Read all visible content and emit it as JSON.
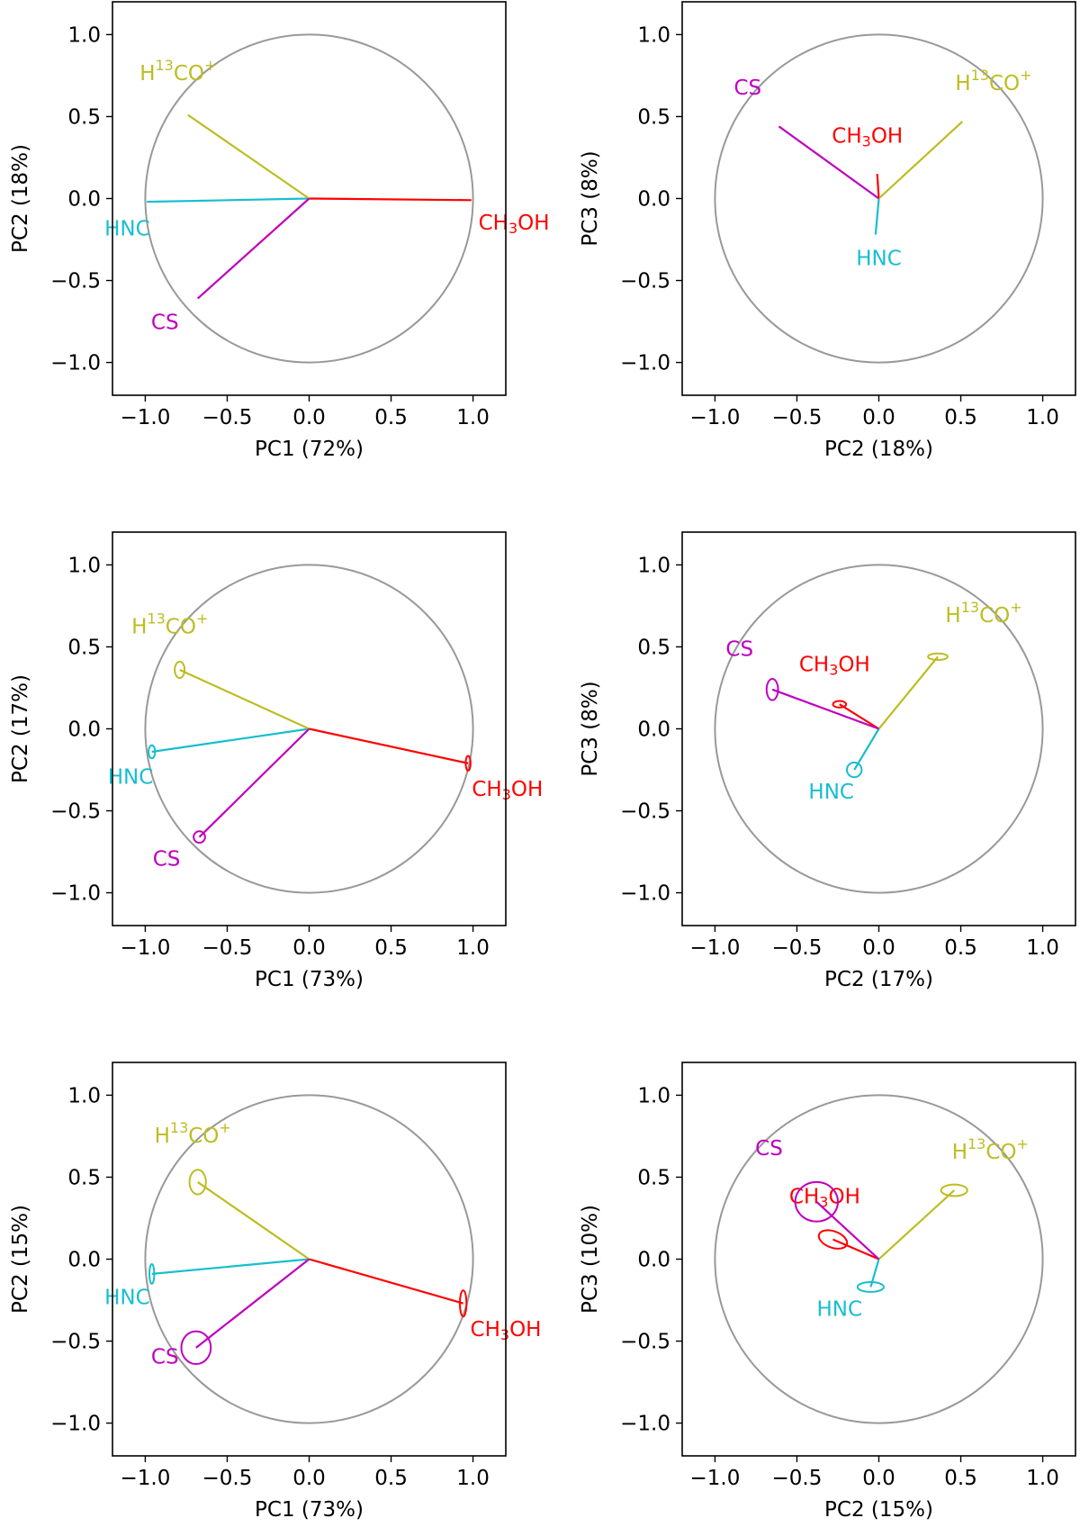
{
  "colors": {
    "CH3OH": "#ff0000",
    "HNC": "#17becf",
    "H13CO+": "#bcbd22",
    "CS": "#bf00bf",
    "circle": "#999999"
  },
  "chart_data": [
    {
      "type": "scatter",
      "xlabel": "PC1 (72%)",
      "ylabel": "PC2 (18%)",
      "xlim": [
        -1.2,
        1.2
      ],
      "ylim": [
        -1.2,
        1.2
      ],
      "xticks": [
        "−1.0",
        "−0.5",
        "0.0",
        "0.5",
        "1.0"
      ],
      "yticks": [
        "1.0",
        "0.5",
        "0.0",
        "−0.5",
        "−1.0"
      ],
      "unit_circle": true,
      "vectors": [
        {
          "name": "CH3OH",
          "x": 0.99,
          "y": -0.01,
          "label_x": 1.25,
          "label_y": -0.15,
          "ell": null
        },
        {
          "name": "HNC",
          "x": -0.99,
          "y": -0.02,
          "label_x": -1.11,
          "label_y": -0.19,
          "ell": null
        },
        {
          "name": "H13CO+",
          "x": -0.74,
          "y": 0.51,
          "label_x": -0.8,
          "label_y": 0.76,
          "ell": null
        },
        {
          "name": "CS",
          "x": -0.68,
          "y": -0.61,
          "label_x": -0.88,
          "label_y": -0.76,
          "ell": null
        }
      ]
    },
    {
      "type": "scatter",
      "xlabel": "PC2 (18%)",
      "ylabel": "PC3 (8%)",
      "xlim": [
        -1.2,
        1.2
      ],
      "ylim": [
        -1.2,
        1.2
      ],
      "xticks": [
        "−1.0",
        "−0.5",
        "0.0",
        "0.5",
        "1.0"
      ],
      "yticks": [
        "1.0",
        "0.5",
        "0.0",
        "−0.5",
        "−1.0"
      ],
      "unit_circle": true,
      "vectors": [
        {
          "name": "CH3OH",
          "x": -0.01,
          "y": 0.15,
          "label_x": -0.07,
          "label_y": 0.38,
          "ell": null
        },
        {
          "name": "HNC",
          "x": -0.02,
          "y": -0.22,
          "label_x": 0.0,
          "label_y": -0.37,
          "ell": null
        },
        {
          "name": "H13CO+",
          "x": 0.51,
          "y": 0.47,
          "label_x": 0.7,
          "label_y": 0.7,
          "ell": null
        },
        {
          "name": "CS",
          "x": -0.61,
          "y": 0.44,
          "label_x": -0.8,
          "label_y": 0.67,
          "ell": null
        }
      ]
    },
    {
      "type": "scatter",
      "xlabel": "PC1 (73%)",
      "ylabel": "PC2 (17%)",
      "xlim": [
        -1.2,
        1.2
      ],
      "ylim": [
        -1.2,
        1.2
      ],
      "xticks": [
        "−1.0",
        "−0.5",
        "0.0",
        "0.5",
        "1.0"
      ],
      "yticks": [
        "1.0",
        "0.5",
        "0.0",
        "−0.5",
        "−1.0"
      ],
      "unit_circle": true,
      "vectors": [
        {
          "name": "CH3OH",
          "x": 0.97,
          "y": -0.21,
          "label_x": 1.21,
          "label_y": -0.37,
          "ell": [
            0.015,
            0.045,
            0
          ]
        },
        {
          "name": "HNC",
          "x": -0.96,
          "y": -0.14,
          "label_x": -1.09,
          "label_y": -0.3,
          "ell": [
            0.02,
            0.04,
            0
          ]
        },
        {
          "name": "H13CO+",
          "x": -0.79,
          "y": 0.36,
          "label_x": -0.85,
          "label_y": 0.62,
          "ell": [
            0.03,
            0.05,
            0
          ]
        },
        {
          "name": "CS",
          "x": -0.67,
          "y": -0.66,
          "label_x": -0.87,
          "label_y": -0.8,
          "ell": [
            0.035,
            0.035,
            0
          ]
        }
      ]
    },
    {
      "type": "scatter",
      "xlabel": "PC2 (17%)",
      "ylabel": "PC3 (8%)",
      "xlim": [
        -1.2,
        1.2
      ],
      "ylim": [
        -1.2,
        1.2
      ],
      "xticks": [
        "−1.0",
        "−0.5",
        "0.0",
        "0.5",
        "1.0"
      ],
      "yticks": [
        "1.0",
        "0.5",
        "0.0",
        "−0.5",
        "−1.0"
      ],
      "unit_circle": true,
      "vectors": [
        {
          "name": "CH3OH",
          "x": -0.24,
          "y": 0.15,
          "label_x": -0.27,
          "label_y": 0.39,
          "ell": [
            0.04,
            0.02,
            0
          ]
        },
        {
          "name": "HNC",
          "x": -0.15,
          "y": -0.25,
          "label_x": -0.29,
          "label_y": -0.39,
          "ell": [
            0.045,
            0.045,
            0
          ]
        },
        {
          "name": "H13CO+",
          "x": 0.36,
          "y": 0.44,
          "label_x": 0.64,
          "label_y": 0.69,
          "ell": [
            0.06,
            0.02,
            0
          ]
        },
        {
          "name": "CS",
          "x": -0.65,
          "y": 0.24,
          "label_x": -0.85,
          "label_y": 0.48,
          "ell": [
            0.035,
            0.065,
            0
          ]
        }
      ]
    },
    {
      "type": "scatter",
      "xlabel": "PC1 (73%)",
      "ylabel": "PC2 (15%)",
      "xlim": [
        -1.2,
        1.2
      ],
      "ylim": [
        -1.2,
        1.2
      ],
      "xticks": [
        "−1.0",
        "−0.5",
        "0.0",
        "0.5",
        "1.0"
      ],
      "yticks": [
        "1.0",
        "0.5",
        "0.0",
        "−0.5",
        "−1.0"
      ],
      "unit_circle": true,
      "vectors": [
        {
          "name": "CH3OH",
          "x": 0.94,
          "y": -0.27,
          "label_x": 1.2,
          "label_y": -0.43,
          "ell": [
            0.02,
            0.08,
            0
          ]
        },
        {
          "name": "HNC",
          "x": -0.96,
          "y": -0.09,
          "label_x": -1.11,
          "label_y": -0.24,
          "ell": [
            0.015,
            0.06,
            0
          ]
        },
        {
          "name": "H13CO+",
          "x": -0.68,
          "y": 0.47,
          "label_x": -0.71,
          "label_y": 0.75,
          "ell": [
            0.05,
            0.075,
            0
          ]
        },
        {
          "name": "CS",
          "x": -0.69,
          "y": -0.54,
          "label_x": -0.88,
          "label_y": -0.6,
          "ell": [
            0.09,
            0.1,
            0
          ]
        }
      ]
    },
    {
      "type": "scatter",
      "xlabel": "PC2 (15%)",
      "ylabel": "PC3 (10%)",
      "xlim": [
        -1.2,
        1.2
      ],
      "ylim": [
        -1.2,
        1.2
      ],
      "xticks": [
        "−1.0",
        "−0.5",
        "0.0",
        "0.5",
        "1.0"
      ],
      "yticks": [
        "1.0",
        "0.5",
        "0.0",
        "−0.5",
        "−1.0"
      ],
      "unit_circle": true,
      "vectors": [
        {
          "name": "CH3OH",
          "x": -0.28,
          "y": 0.12,
          "label_x": -0.33,
          "label_y": 0.38,
          "ell": [
            0.09,
            0.05,
            20
          ]
        },
        {
          "name": "HNC",
          "x": -0.05,
          "y": -0.17,
          "label_x": -0.24,
          "label_y": -0.31,
          "ell": [
            0.08,
            0.03,
            0
          ]
        },
        {
          "name": "H13CO+",
          "x": 0.46,
          "y": 0.42,
          "label_x": 0.68,
          "label_y": 0.65,
          "ell": [
            0.08,
            0.035,
            0
          ]
        },
        {
          "name": "CS",
          "x": -0.38,
          "y": 0.35,
          "label_x": -0.67,
          "label_y": 0.67,
          "ell": [
            0.13,
            0.12,
            0
          ]
        }
      ]
    }
  ]
}
